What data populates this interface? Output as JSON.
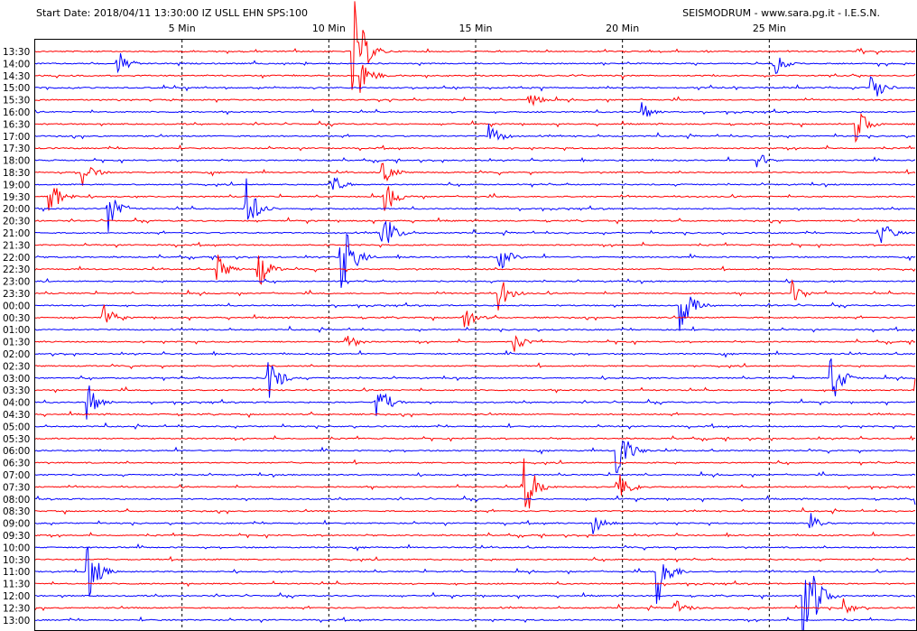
{
  "header": {
    "left": "Start Date: 2018/04/11 13:30:00 IZ USLL EHN SPS:100",
    "right": "SEISMODRUM - www.sara.pg.it - I.E.S.N."
  },
  "colors": {
    "background": "#ffffff",
    "trace_a": "#ff0000",
    "trace_b": "#0000ff",
    "frame": "#000000",
    "minute_grid": "#000000"
  },
  "chart_data": {
    "type": "line",
    "title": "Start Date: 2018/04/11 13:30:00 IZ USLL EHN SPS:100",
    "x_axis": {
      "unit": "minutes",
      "range": [
        0,
        30
      ],
      "ticks": [
        {
          "value": 5,
          "label": "5 Min"
        },
        {
          "value": 10,
          "label": "10 Min"
        },
        {
          "value": 15,
          "label": "15 Min"
        },
        {
          "value": 20,
          "label": "20 Min"
        },
        {
          "value": 25,
          "label": "25 Min"
        }
      ],
      "grid": "dashed"
    },
    "row_labels": [
      "13:30",
      "14:00",
      "14:30",
      "15:00",
      "15:30",
      "16:00",
      "16:30",
      "17:00",
      "17:30",
      "18:00",
      "18:30",
      "19:00",
      "19:30",
      "20:00",
      "20:30",
      "21:00",
      "21:30",
      "22:00",
      "22:30",
      "23:00",
      "23:30",
      "00:00",
      "00:30",
      "01:00",
      "01:30",
      "02:00",
      "02:30",
      "03:00",
      "03:30",
      "04:00",
      "04:30",
      "05:00",
      "05:30",
      "06:00",
      "06:30",
      "07:00",
      "07:30",
      "08:00",
      "08:30",
      "09:00",
      "09:30",
      "10:00",
      "10:30",
      "11:00",
      "11:30",
      "12:00",
      "12:30",
      "13:00"
    ],
    "row_colors": [
      "red",
      "blue"
    ],
    "events": [
      {
        "row": 0,
        "minute": 10.85,
        "amplitude": 5
      },
      {
        "row": 1,
        "minute": 2.8,
        "amplitude": 1.2
      },
      {
        "row": 1,
        "minute": 25.2,
        "amplitude": 1
      },
      {
        "row": 2,
        "minute": 11.1,
        "amplitude": 1.6
      },
      {
        "row": 3,
        "minute": 28.5,
        "amplitude": 1.3
      },
      {
        "row": 4,
        "minute": 16.8,
        "amplitude": 1
      },
      {
        "row": 5,
        "minute": 20.7,
        "amplitude": 0.8
      },
      {
        "row": 6,
        "minute": 28,
        "amplitude": 1.5
      },
      {
        "row": 7,
        "minute": 15.5,
        "amplitude": 1.1
      },
      {
        "row": 9,
        "minute": 24.6,
        "amplitude": 0.8
      },
      {
        "row": 10,
        "minute": 1.6,
        "amplitude": 1.4
      },
      {
        "row": 10,
        "minute": 11.8,
        "amplitude": 1.2
      },
      {
        "row": 11,
        "minute": 10.1,
        "amplitude": 1
      },
      {
        "row": 12,
        "minute": 0.5,
        "amplitude": 1.8
      },
      {
        "row": 12,
        "minute": 11.9,
        "amplitude": 1.7
      },
      {
        "row": 13,
        "minute": 2.5,
        "amplitude": 2.1
      },
      {
        "row": 13,
        "minute": 7.2,
        "amplitude": 2.6
      },
      {
        "row": 15,
        "minute": 11.8,
        "amplitude": 2.4
      },
      {
        "row": 15,
        "minute": 28.8,
        "amplitude": 1.4
      },
      {
        "row": 17,
        "minute": 10.4,
        "amplitude": 4.5
      },
      {
        "row": 17,
        "minute": 15.8,
        "amplitude": 1.3
      },
      {
        "row": 18,
        "minute": 6.2,
        "amplitude": 1.3
      },
      {
        "row": 18,
        "minute": 7.6,
        "amplitude": 1.7
      },
      {
        "row": 20,
        "minute": 15.8,
        "amplitude": 1.6
      },
      {
        "row": 20,
        "minute": 25.8,
        "amplitude": 1.1
      },
      {
        "row": 21,
        "minute": 22,
        "amplitude": 2.2
      },
      {
        "row": 22,
        "minute": 2.3,
        "amplitude": 1.3
      },
      {
        "row": 22,
        "minute": 14.6,
        "amplitude": 1.4
      },
      {
        "row": 24,
        "minute": 10.6,
        "amplitude": 0.9
      },
      {
        "row": 24,
        "minute": 16.3,
        "amplitude": 0.9
      },
      {
        "row": 27,
        "minute": 7.9,
        "amplitude": 2.5
      },
      {
        "row": 27,
        "minute": 27.1,
        "amplitude": 2.8
      },
      {
        "row": 28,
        "minute": 30,
        "amplitude": 1
      },
      {
        "row": 29,
        "minute": 1.8,
        "amplitude": 1.6
      },
      {
        "row": 29,
        "minute": 11.6,
        "amplitude": 2.2
      },
      {
        "row": 33,
        "minute": 19.8,
        "amplitude": 3
      },
      {
        "row": 36,
        "minute": 16.7,
        "amplitude": 2.7
      },
      {
        "row": 36,
        "minute": 19.8,
        "amplitude": 2.3
      },
      {
        "row": 37,
        "minute": 30,
        "amplitude": 1
      },
      {
        "row": 39,
        "minute": 19,
        "amplitude": 1.2
      },
      {
        "row": 39,
        "minute": 26.4,
        "amplitude": 1
      },
      {
        "row": 43,
        "minute": 1.8,
        "amplitude": 2.4
      },
      {
        "row": 43,
        "minute": 21.2,
        "amplitude": 3
      },
      {
        "row": 45,
        "minute": 26.2,
        "amplitude": 6
      },
      {
        "row": 46,
        "minute": 21.8,
        "amplitude": 1.1
      },
      {
        "row": 46,
        "minute": 27.5,
        "amplitude": 0.9
      }
    ]
  }
}
